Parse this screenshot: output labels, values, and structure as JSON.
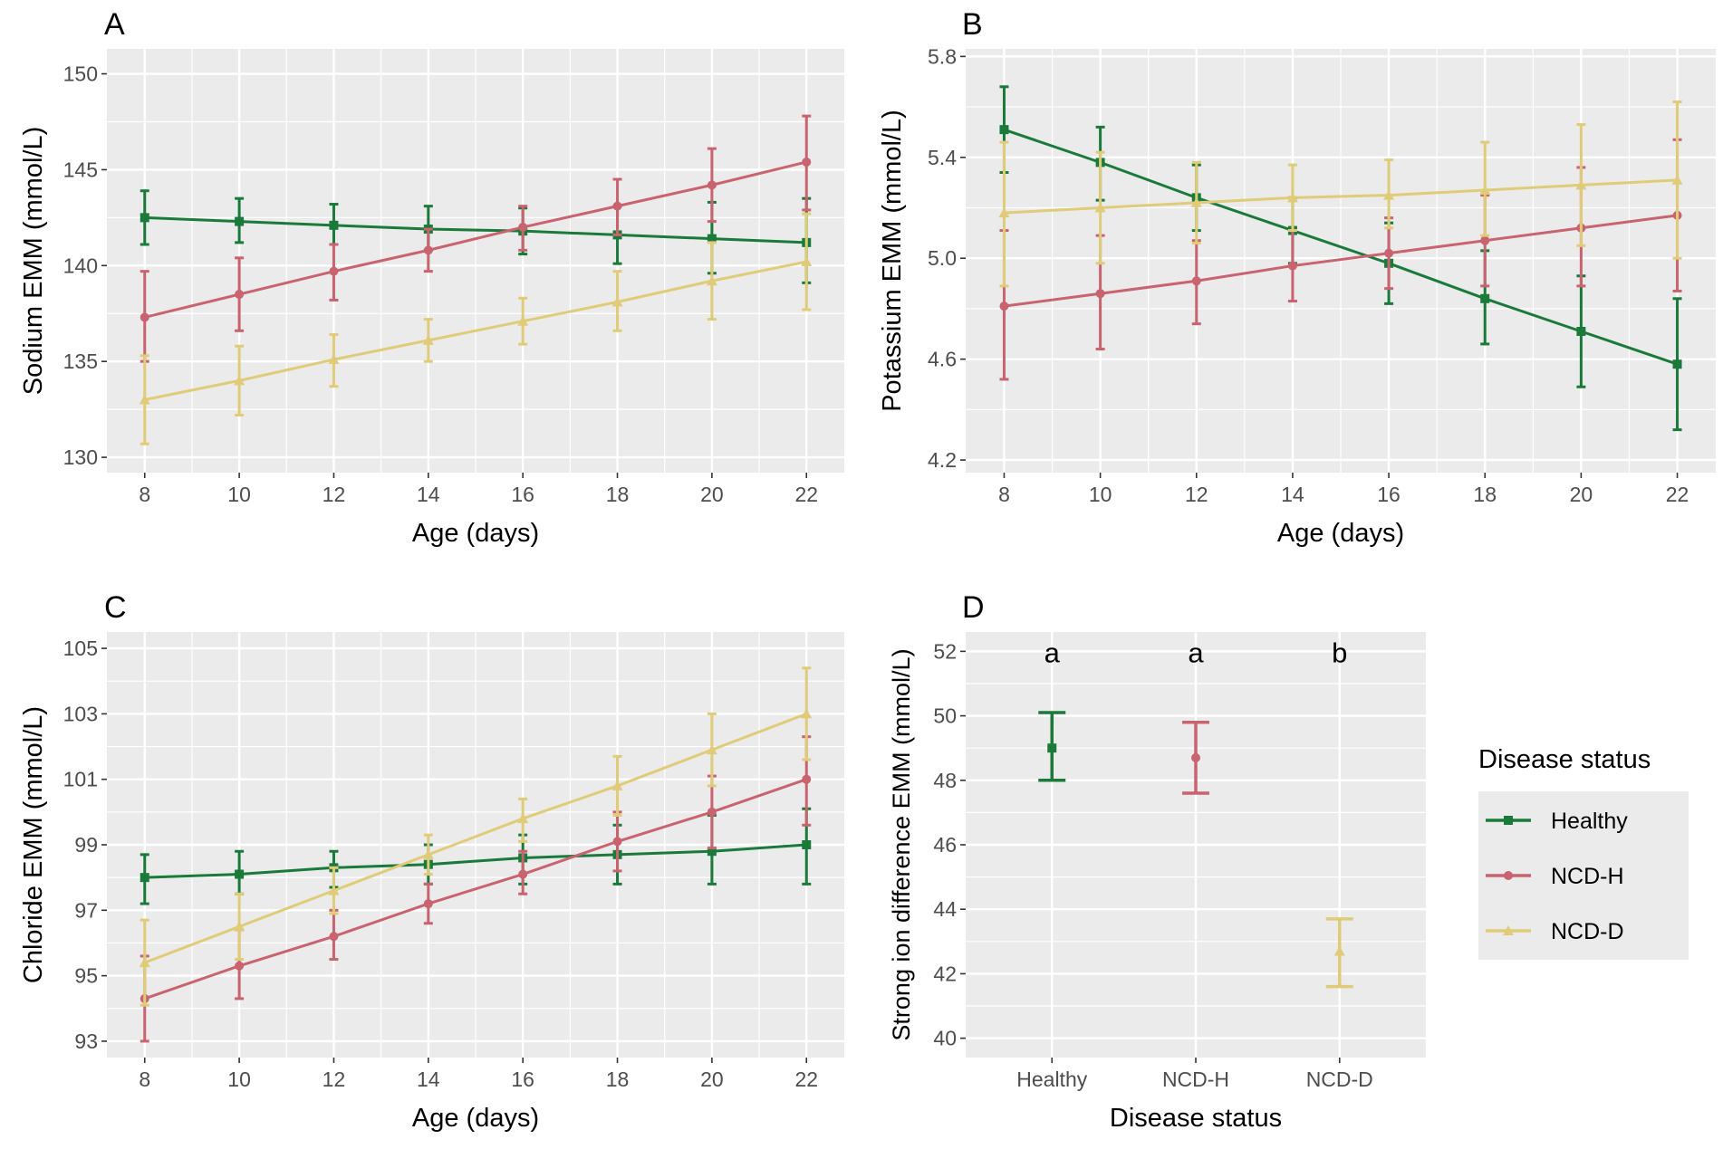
{
  "legend": {
    "title": "Disease status",
    "items": [
      {
        "label": "Healthy",
        "color": "#1a7a3a",
        "marker": "square"
      },
      {
        "label": "NCD-H",
        "color": "#c8636f",
        "marker": "circle"
      },
      {
        "label": "NCD-D",
        "color": "#e0cc78",
        "marker": "triangle"
      }
    ]
  },
  "chart_data": [
    {
      "panel": "A",
      "type": "line",
      "xlabel": "Age (days)",
      "ylabel": "Sodium EMM (mmol/L)",
      "x": [
        8,
        10,
        12,
        14,
        16,
        18,
        20,
        22
      ],
      "xticks": [
        8,
        10,
        12,
        14,
        16,
        18,
        20,
        22
      ],
      "xlim": [
        7.2,
        22.8
      ],
      "yticks": [
        130,
        135,
        140,
        145,
        150
      ],
      "ytick_labels": [
        "130",
        "135",
        "140",
        "145",
        "150"
      ],
      "ylim": [
        129.2,
        151.3
      ],
      "series": [
        {
          "name": "Healthy",
          "values": [
            142.5,
            142.3,
            142.1,
            141.9,
            141.8,
            141.6,
            141.4,
            141.2
          ],
          "lower": [
            141.1,
            141.2,
            141.1,
            140.8,
            140.6,
            140.1,
            139.6,
            139.1
          ],
          "upper": [
            143.9,
            143.5,
            143.2,
            143.1,
            143.0,
            143.1,
            143.3,
            143.5
          ]
        },
        {
          "name": "NCD-H",
          "values": [
            137.3,
            138.5,
            139.7,
            140.8,
            142.0,
            143.1,
            144.2,
            145.4
          ],
          "lower": [
            135.0,
            136.6,
            138.2,
            139.7,
            140.8,
            141.6,
            142.3,
            142.9
          ],
          "upper": [
            139.7,
            140.4,
            141.1,
            141.9,
            143.1,
            144.5,
            146.1,
            147.8
          ]
        },
        {
          "name": "NCD-D",
          "values": [
            133.0,
            134.0,
            135.1,
            136.1,
            137.1,
            138.1,
            139.2,
            140.2
          ],
          "lower": [
            130.7,
            132.2,
            133.7,
            135.0,
            135.9,
            136.6,
            137.2,
            137.7
          ],
          "upper": [
            135.3,
            135.8,
            136.4,
            137.2,
            138.3,
            139.7,
            141.2,
            142.7
          ]
        }
      ]
    },
    {
      "panel": "B",
      "type": "line",
      "xlabel": "Age (days)",
      "ylabel": "Potassium EMM (mmol/L)",
      "x": [
        8,
        10,
        12,
        14,
        16,
        18,
        20,
        22
      ],
      "xticks": [
        8,
        10,
        12,
        14,
        16,
        18,
        20,
        22
      ],
      "xlim": [
        7.2,
        22.8
      ],
      "yticks": [
        4.2,
        4.6,
        5.0,
        5.4,
        5.8
      ],
      "ytick_labels": [
        "4.2",
        "4.6",
        "5.0",
        "5.4",
        "5.8"
      ],
      "ylim": [
        4.15,
        5.83
      ],
      "series": [
        {
          "name": "Healthy",
          "values": [
            5.51,
            5.38,
            5.24,
            5.11,
            4.98,
            4.84,
            4.71,
            4.58
          ],
          "lower": [
            5.34,
            5.23,
            5.11,
            4.98,
            4.82,
            4.66,
            4.49,
            4.32
          ],
          "upper": [
            5.68,
            5.52,
            5.37,
            5.24,
            5.14,
            5.03,
            4.93,
            4.84
          ]
        },
        {
          "name": "NCD-H",
          "values": [
            4.81,
            4.86,
            4.91,
            4.97,
            5.02,
            5.07,
            5.12,
            5.17
          ],
          "lower": [
            4.52,
            4.64,
            4.74,
            4.83,
            4.88,
            4.89,
            4.89,
            4.87
          ],
          "upper": [
            5.11,
            5.09,
            5.07,
            5.11,
            5.16,
            5.25,
            5.36,
            5.47
          ]
        },
        {
          "name": "NCD-D",
          "values": [
            5.18,
            5.2,
            5.22,
            5.24,
            5.25,
            5.27,
            5.29,
            5.31
          ],
          "lower": [
            4.89,
            4.98,
            5.06,
            5.11,
            5.12,
            5.09,
            5.05,
            5.0
          ],
          "upper": [
            5.46,
            5.42,
            5.38,
            5.37,
            5.39,
            5.46,
            5.53,
            5.62
          ]
        }
      ]
    },
    {
      "panel": "C",
      "type": "line",
      "xlabel": "Age (days)",
      "ylabel": "Chloride EMM (mmol/L)",
      "x": [
        8,
        10,
        12,
        14,
        16,
        18,
        20,
        22
      ],
      "xticks": [
        8,
        10,
        12,
        14,
        16,
        18,
        20,
        22
      ],
      "xlim": [
        7.2,
        22.8
      ],
      "yticks": [
        93,
        95,
        97,
        99,
        101,
        103,
        105
      ],
      "ytick_labels": [
        "93",
        "95",
        "97",
        "99",
        "101",
        "103",
        "105"
      ],
      "ylim": [
        92.5,
        105.5
      ],
      "series": [
        {
          "name": "Healthy",
          "values": [
            98.0,
            98.1,
            98.3,
            98.4,
            98.6,
            98.7,
            98.8,
            99.0
          ],
          "lower": [
            97.2,
            97.5,
            97.7,
            97.8,
            97.8,
            97.8,
            97.8,
            97.8
          ],
          "upper": [
            98.7,
            98.8,
            98.8,
            99.0,
            99.3,
            99.6,
            99.9,
            100.1
          ]
        },
        {
          "name": "NCD-H",
          "values": [
            94.3,
            95.3,
            96.2,
            97.2,
            98.1,
            99.1,
            100.0,
            101.0
          ],
          "lower": [
            93.0,
            94.3,
            95.5,
            96.6,
            97.5,
            98.2,
            98.9,
            99.6
          ],
          "upper": [
            95.6,
            96.4,
            97.0,
            97.8,
            98.8,
            100.0,
            101.1,
            102.3
          ]
        },
        {
          "name": "NCD-D",
          "values": [
            95.4,
            96.5,
            97.6,
            98.7,
            99.8,
            100.8,
            101.9,
            103.0
          ],
          "lower": [
            94.1,
            95.5,
            96.9,
            98.1,
            99.1,
            99.9,
            100.8,
            101.6
          ],
          "upper": [
            96.7,
            97.5,
            98.3,
            99.3,
            100.4,
            101.7,
            103.0,
            104.4
          ]
        }
      ]
    },
    {
      "panel": "D",
      "type": "scatter",
      "xlabel": "Disease status",
      "ylabel": "Strong ion difference EMM (mmol/L)",
      "categories": [
        "Healthy",
        "NCD-H",
        "NCD-D"
      ],
      "yticks": [
        40,
        42,
        44,
        46,
        48,
        50,
        52
      ],
      "ytick_labels": [
        "40",
        "42",
        "44",
        "46",
        "48",
        "50",
        "52"
      ],
      "ylim": [
        39.4,
        52.6
      ],
      "values": [
        49.0,
        48.7,
        42.7
      ],
      "lower": [
        48.0,
        47.6,
        41.6
      ],
      "upper": [
        50.1,
        49.8,
        43.7
      ],
      "annotations": [
        "a",
        "a",
        "b"
      ]
    }
  ]
}
